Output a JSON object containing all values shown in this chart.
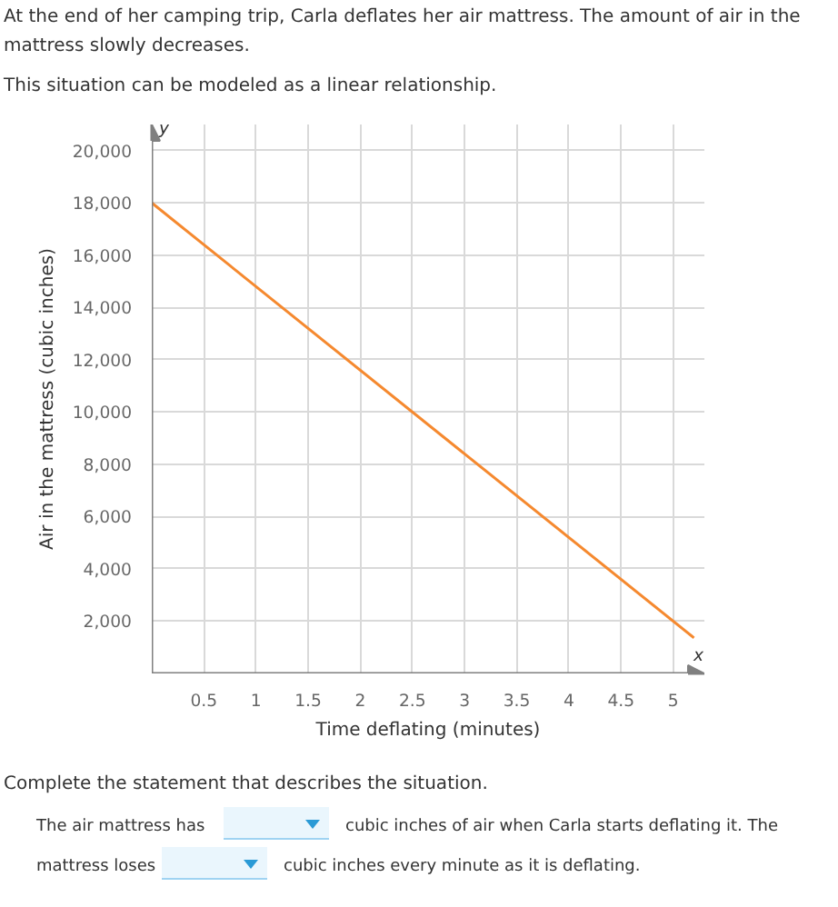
{
  "chart_data": {
    "type": "line",
    "title": "At the end of her camping trip, Carla deflates her air mattress. The amount of air in the mattress slowly decreases.",
    "subtitle": "This situation can be modeled as a linear relationship.",
    "xlabel": "Time deflating (minutes)",
    "ylabel": "Air in the mattress (cubic inches)",
    "series": [
      {
        "color": "#f5892f",
        "x": [
          0,
          5.2
        ],
        "values": [
          18000,
          1360
        ]
      }
    ],
    "xlim": [
      0,
      5.3
    ],
    "ylim": [
      0,
      21000
    ],
    "xticks": [
      0.5,
      1,
      1.5,
      2,
      2.5,
      3,
      3.5,
      4,
      4.5,
      5
    ],
    "yticks": [
      {
        "value": 2000,
        "label": "2,000"
      },
      {
        "value": 4000,
        "label": "4,000"
      },
      {
        "value": 6000,
        "label": "6,000"
      },
      {
        "value": 8000,
        "label": "8,000"
      },
      {
        "value": 10000,
        "label": "10,000"
      },
      {
        "value": 12000,
        "label": "12,000"
      },
      {
        "value": 14000,
        "label": "14,000"
      },
      {
        "value": 16000,
        "label": "16,000"
      },
      {
        "value": 18000,
        "label": "18,000"
      },
      {
        "value": 20000,
        "label": "20,000"
      }
    ],
    "grid": true,
    "marker": "none",
    "line_style": "solid",
    "annotations": [
      "y",
      "x",
      "Complete the statement that describes the situation.",
      "The air mattress has",
      "cubic inches of air when Carla starts deflating it. The",
      "mattress loses",
      "cubic inches every minute as it is deflating."
    ]
  }
}
